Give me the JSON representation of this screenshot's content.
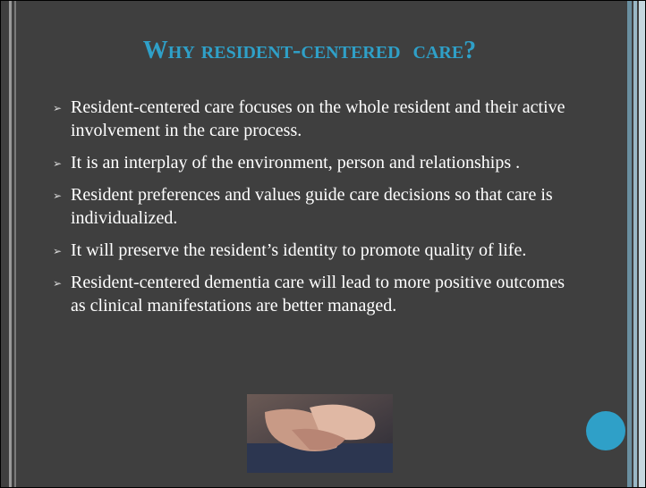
{
  "slide": {
    "title": "Why resident-centered  care?",
    "bullets": [
      "Resident-centered care focuses on the whole resident and their active involvement in the care process.",
      "It is an interplay of the environment, person and relationships .",
      "Resident preferences and values guide care decisions so that care is individualized.",
      "It will preserve the resident’s identity to promote quality of life.",
      "Resident-centered dementia care will lead to more positive outcomes as clinical manifestations are better managed."
    ]
  }
}
